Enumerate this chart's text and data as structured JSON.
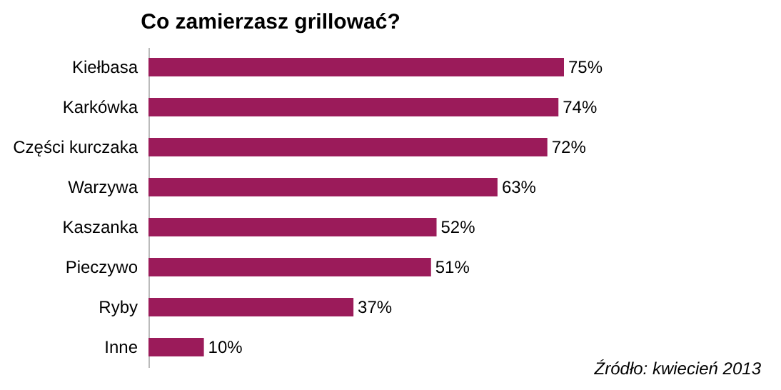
{
  "chart_data": {
    "type": "bar",
    "orientation": "horizontal",
    "title": "Co zamierzasz grillować?",
    "categories": [
      "Kiełbasa",
      "Karkówka",
      "Części kurczaka",
      "Warzywa",
      "Kaszanka",
      "Pieczywo",
      "Ryby",
      "Inne"
    ],
    "values": [
      75,
      74,
      72,
      63,
      52,
      51,
      37,
      10
    ],
    "color": "#9b1b5a",
    "value_labels": [
      "75%",
      "74%",
      "72%",
      "63%",
      "52%",
      "51%",
      "37%",
      "10%"
    ],
    "annotations": [
      "Źródło: kwiecień 2013"
    ]
  }
}
